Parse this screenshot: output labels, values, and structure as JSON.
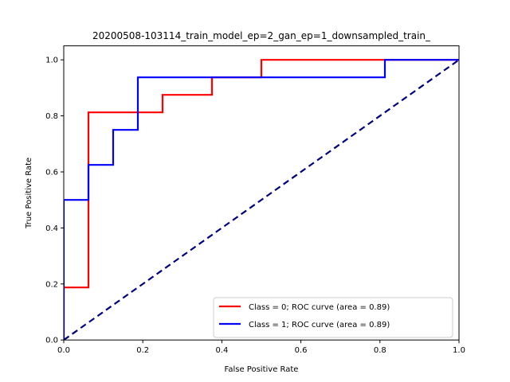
{
  "chart_data": {
    "type": "line",
    "title": "20200508-103114_train_model_ep=2_gan_ep=1_downsampled_train_",
    "xlabel": "False Positive Rate",
    "ylabel": "True Positive Rate",
    "xlim": [
      0.0,
      1.0
    ],
    "ylim": [
      0.0,
      1.05
    ],
    "xticks": [
      0.0,
      0.2,
      0.4,
      0.6,
      0.8,
      1.0
    ],
    "yticks": [
      0.0,
      0.2,
      0.4,
      0.6,
      0.8,
      1.0
    ],
    "xtick_labels": [
      "0.0",
      "0.2",
      "0.4",
      "0.6",
      "0.8",
      "1.0"
    ],
    "ytick_labels": [
      "0.0",
      "0.2",
      "0.4",
      "0.6",
      "0.8",
      "1.0"
    ],
    "grid": false,
    "legend_position": "lower-right",
    "series": [
      {
        "name": "Class = 0; ROC curve (area =  0.89)",
        "color": "#ff0000",
        "style": "solid",
        "x": [
          0.0,
          0.0,
          0.0625,
          0.0625,
          0.0625,
          0.25,
          0.25,
          0.375,
          0.375,
          0.5,
          0.5,
          1.0
        ],
        "y": [
          0.0,
          0.1875,
          0.1875,
          0.625,
          0.8125,
          0.8125,
          0.875,
          0.875,
          0.9375,
          0.9375,
          1.0,
          1.0
        ]
      },
      {
        "name": "Class = 1; ROC curve (area =  0.89)",
        "color": "#0000ff",
        "style": "solid",
        "x": [
          0.0,
          0.0,
          0.0625,
          0.0625,
          0.125,
          0.125,
          0.1875,
          0.1875,
          0.8125,
          0.8125,
          1.0
        ],
        "y": [
          0.0,
          0.5,
          0.5,
          0.625,
          0.625,
          0.75,
          0.75,
          0.9375,
          0.9375,
          1.0,
          1.0
        ]
      },
      {
        "name": "",
        "color": "#000080",
        "style": "dashed",
        "x": [
          0.0,
          1.0
        ],
        "y": [
          0.0,
          1.0
        ]
      }
    ]
  }
}
